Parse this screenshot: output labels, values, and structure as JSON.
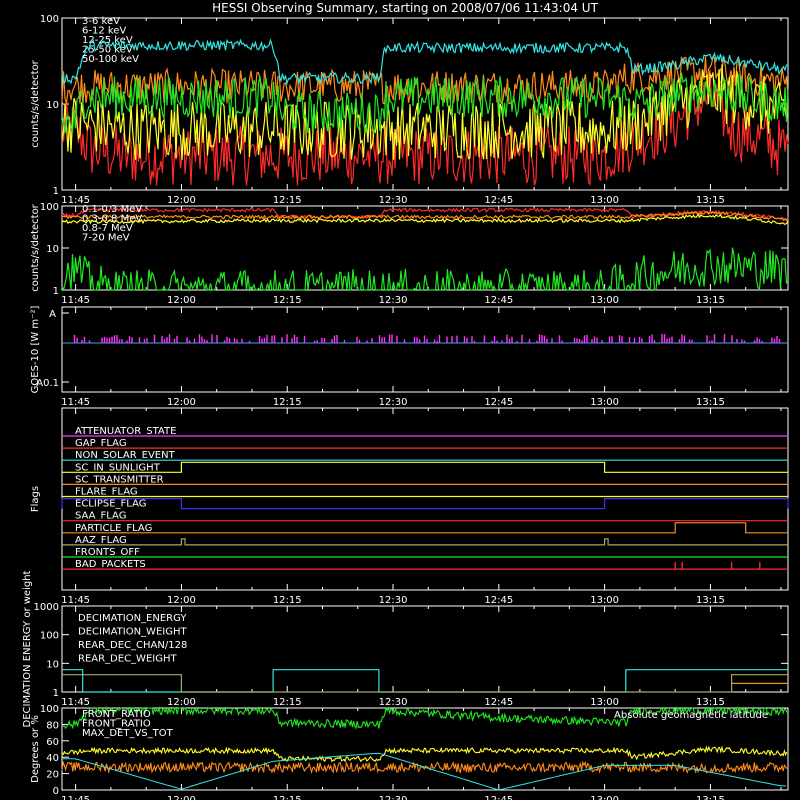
{
  "title": "HESSI Observing Summary, starting on 2008/07/06 11:43:04 UT",
  "colors": {
    "red": "#ff2a2a",
    "orange": "#ff8c1a",
    "yellow": "#ffff2a",
    "green": "#22e822",
    "cyan": "#33e6e6",
    "magenta": "#ff33ff",
    "blue": "#3333ff",
    "olive": "#a8a860",
    "salmon": "#ff5a5a",
    "white": "#ffffff"
  },
  "x_ticks": [
    "11:45",
    "12:00",
    "12:15",
    "12:30",
    "12:45",
    "13:00",
    "13:15"
  ],
  "chart_data": [
    {
      "type": "line",
      "ylabel": "counts/s/detector",
      "yscale": "log",
      "ylim": [
        1,
        100
      ],
      "ytick_labels": [
        "1",
        "10",
        "100"
      ],
      "xlim": [
        "11:43:04",
        "13:26"
      ],
      "series": [
        {
          "name": "3-6 keV",
          "color": "red",
          "x": [
            "11:45",
            "11:47",
            "11:52",
            "12:00",
            "12:13",
            "12:18",
            "12:28",
            "12:35",
            "12:45",
            "13:00",
            "13:05",
            "13:10",
            "13:15",
            "13:18",
            "13:22",
            "13:25"
          ],
          "y": [
            5,
            3,
            2.5,
            2.5,
            2.5,
            2.5,
            2.5,
            2.5,
            2.5,
            2.5,
            4,
            6,
            12,
            5,
            4,
            3
          ]
        },
        {
          "name": "6-12 keV",
          "color": "orange",
          "x": [
            "11:45",
            "11:52",
            "12:00",
            "12:13",
            "12:14",
            "12:28",
            "12:29",
            "12:45",
            "13:00",
            "13:03",
            "13:10",
            "13:15",
            "13:20",
            "13:25"
          ],
          "y": [
            16,
            16,
            16,
            16,
            16,
            16,
            16,
            16,
            16,
            20,
            22,
            24,
            20,
            18
          ]
        },
        {
          "name": "12-25 keV",
          "color": "yellow",
          "x": [
            "11:45",
            "11:52",
            "12:00",
            "12:13",
            "12:28",
            "12:45",
            "13:00",
            "13:05",
            "13:10",
            "13:15",
            "13:20",
            "13:25"
          ],
          "y": [
            6,
            5,
            5,
            5,
            5,
            5,
            5,
            6,
            10,
            14,
            11,
            8
          ]
        },
        {
          "name": "25-50 keV",
          "color": "green",
          "x": [
            "11:45",
            "11:46",
            "11:47",
            "12:00",
            "12:13",
            "12:14",
            "12:28",
            "12:29",
            "12:45",
            "13:00",
            "13:05",
            "13:10",
            "13:15",
            "13:20",
            "13:25"
          ],
          "y": [
            6,
            12,
            12,
            12,
            12,
            8,
            8,
            12,
            12,
            12,
            10,
            13,
            15,
            12,
            10
          ]
        },
        {
          "name": "50-100 keV",
          "color": "cyan",
          "x": [
            "11:45",
            "11:47",
            "12:13",
            "12:14",
            "12:28",
            "12:29",
            "12:45",
            "13:00",
            "13:03",
            "13:04",
            "13:10",
            "13:15",
            "13:20",
            "13:25"
          ],
          "y": [
            20,
            48,
            48,
            20,
            20,
            45,
            45,
            45,
            45,
            25,
            28,
            35,
            30,
            25
          ]
        }
      ]
    },
    {
      "type": "line",
      "ylabel": "counts/s/detector",
      "yscale": "log",
      "ylim": [
        1,
        100
      ],
      "ytick_labels": [
        "1",
        "10",
        "100"
      ],
      "series": [
        {
          "name": "0.1-0.3 MeV",
          "color": "red",
          "x": [
            "11:45",
            "11:47",
            "12:13",
            "12:14",
            "12:28",
            "12:29",
            "13:03",
            "13:04",
            "13:15",
            "13:25"
          ],
          "y": [
            60,
            80,
            80,
            55,
            55,
            80,
            80,
            55,
            75,
            50
          ]
        },
        {
          "name": "0.3-0.8 MeV",
          "color": "orange",
          "x": [
            "11:45",
            "12:13",
            "12:28",
            "13:03",
            "13:15",
            "13:25"
          ],
          "y": [
            55,
            55,
            55,
            55,
            70,
            48
          ]
        },
        {
          "name": "0.8-7 MeV",
          "color": "yellow",
          "x": [
            "11:45",
            "12:13",
            "12:28",
            "13:03",
            "13:15",
            "13:25"
          ],
          "y": [
            42,
            45,
            45,
            45,
            60,
            40
          ]
        },
        {
          "name": "7-20 MeV",
          "color": "green",
          "x": [
            "11:45",
            "11:47",
            "11:50",
            "12:50",
            "13:00",
            "13:05",
            "13:10",
            "13:15",
            "13:25"
          ],
          "y": [
            3,
            1.5,
            1,
            1,
            1,
            2,
            3,
            4,
            3
          ]
        }
      ]
    },
    {
      "type": "line",
      "ylabel": "GOES-10 [W m⁻²]",
      "ytick_labels": [
        "A",
        "A0.1"
      ],
      "series": [
        {
          "name": "GOES-10",
          "color": "magenta",
          "x": [
            "11:45",
            "13:25"
          ],
          "y": [
            1,
            1
          ]
        }
      ]
    },
    {
      "type": "line",
      "ylabel": "Flags",
      "flags": [
        {
          "name": "ATTENUATOR_STATE",
          "color": "magenta",
          "on": []
        },
        {
          "name": "GAP_FLAG",
          "color": "red",
          "on": []
        },
        {
          "name": "NON_SOLAR_EVENT",
          "color": "cyan",
          "on": []
        },
        {
          "name": "SC_IN_SUNLIGHT",
          "color": "yellow",
          "on": [
            [
              "12:00",
              "13:00"
            ]
          ]
        },
        {
          "name": "SC_TRANSMITTER",
          "color": "orange",
          "on": []
        },
        {
          "name": "FLARE_FLAG",
          "color": "yellow",
          "on": []
        },
        {
          "name": "ECLIPSE_FLAG",
          "color": "blue",
          "on": [
            [
              "11:43:04",
              "12:00"
            ],
            [
              "13:00",
              "13:26"
            ]
          ]
        },
        {
          "name": "SAA_FLAG",
          "color": "red",
          "on": []
        },
        {
          "name": "PARTICLE_FLAG",
          "color": "orange",
          "on": [
            [
              "13:10",
              "13:20"
            ]
          ]
        },
        {
          "name": "AAZ_FLAG",
          "color": "olive",
          "on": [
            [
              "12:00",
              "12:00:30"
            ],
            [
              "13:00",
              "13:00:30"
            ]
          ]
        },
        {
          "name": "FRONTS_OFF",
          "color": "green",
          "on": []
        },
        {
          "name": "BAD_PACKETS",
          "color": "red",
          "on": []
        }
      ]
    },
    {
      "type": "line",
      "ylabel": "DECIMATION ENERGY or weight",
      "yscale": "log",
      "ylim": [
        1,
        1000
      ],
      "ytick_labels": [
        "1",
        "10",
        "100",
        "1000"
      ],
      "series": [
        {
          "name": "DECIMATION_ENERGY",
          "color": "green",
          "x": [],
          "y": []
        },
        {
          "name": "DECIMATION_WEIGHT",
          "color": "orange",
          "x": [
            "13:18",
            "13:26"
          ],
          "y": [
            2,
            2
          ]
        },
        {
          "name": "REAR_DEC_CHAN/128",
          "color": "cyan",
          "x": [
            "11:43:04",
            "11:46",
            "11:46",
            "12:13",
            "12:13",
            "12:28",
            "12:28",
            "13:03",
            "13:03",
            "13:26"
          ],
          "y": [
            6,
            6,
            1,
            1,
            6,
            6,
            1,
            1,
            6,
            6
          ]
        },
        {
          "name": "REAR_DEC_WEIGHT",
          "color": "olive",
          "x": [
            "11:43:04",
            "12:00",
            "12:00",
            "13:18",
            "13:18",
            "13:26"
          ],
          "y": [
            4,
            4,
            1,
            1,
            4,
            4
          ]
        }
      ]
    },
    {
      "type": "line",
      "ylabel": "Degrees or %",
      "ylim": [
        0,
        100
      ],
      "ytick_labels": [
        "0",
        "20",
        "40",
        "60",
        "80",
        "100"
      ],
      "annotations": [
        "Absolute geomagnetic latitude"
      ],
      "series": [
        {
          "name": "FRONT_RATIO",
          "color": "green",
          "x": [
            "11:45",
            "11:47",
            "12:13",
            "12:14",
            "12:28",
            "12:29",
            "12:45",
            "13:03",
            "13:04",
            "13:15",
            "13:25"
          ],
          "y": [
            80,
            97,
            97,
            82,
            80,
            97,
            88,
            82,
            97,
            97,
            96
          ]
        },
        {
          "name": "FRONT_RATIO",
          "color": "yellow",
          "x": [
            "11:45",
            "11:47",
            "12:13",
            "12:14",
            "12:28",
            "12:29",
            "13:03",
            "13:04",
            "13:15",
            "13:25"
          ],
          "y": [
            46,
            48,
            48,
            38,
            38,
            48,
            48,
            40,
            50,
            45
          ]
        },
        {
          "name": "MAX_DET_VS_TOT",
          "color": "orange",
          "x": [
            "11:45",
            "12:00",
            "12:15",
            "12:30",
            "12:45",
            "13:00",
            "13:15",
            "13:25"
          ],
          "y": [
            28,
            28,
            27,
            28,
            27,
            28,
            27,
            28
          ]
        },
        {
          "name": "Absolute geomagnetic latitude",
          "color": "cyan",
          "x": [
            "11:45",
            "12:00",
            "12:13",
            "12:28",
            "12:45",
            "13:00",
            "13:10",
            "13:25"
          ],
          "y": [
            38,
            1,
            35,
            45,
            0,
            30,
            30,
            5
          ]
        }
      ]
    }
  ]
}
